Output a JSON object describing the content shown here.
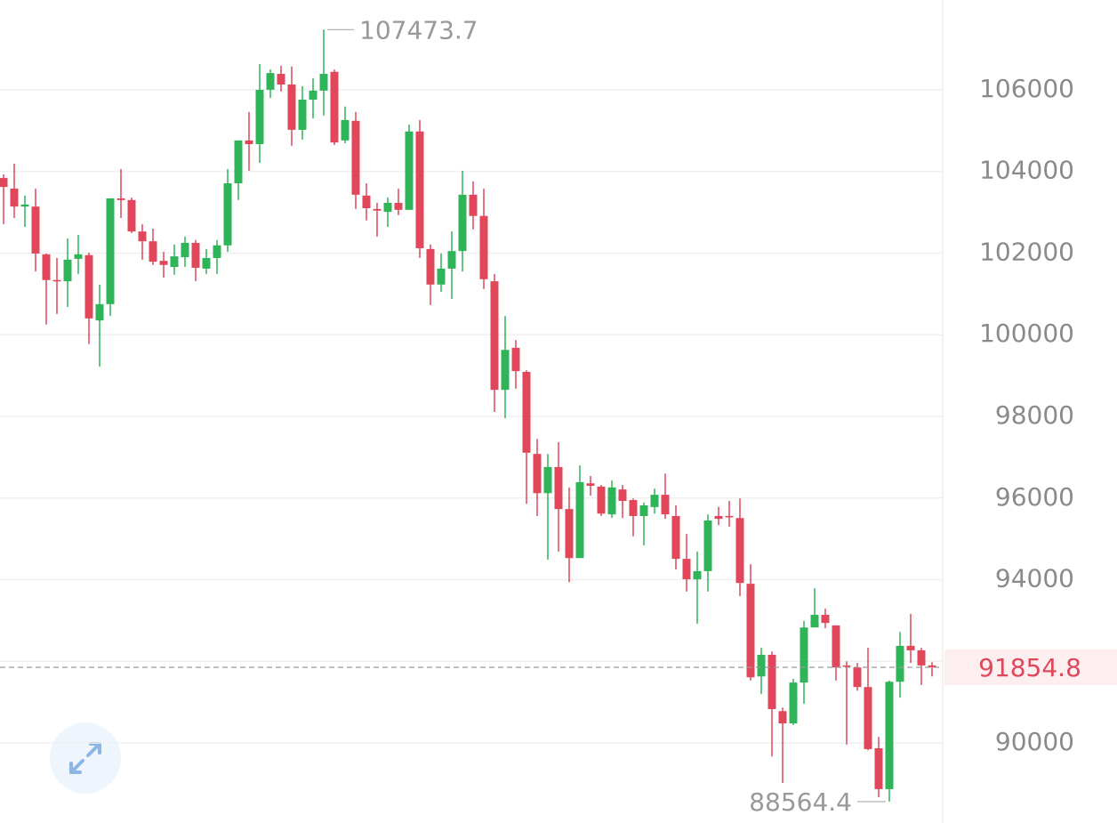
{
  "chart_data": {
    "type": "candlestick",
    "open": [
      103840,
      103580,
      103140,
      103140,
      101970,
      101340,
      101310,
      101860,
      101950,
      100350,
      100750,
      103340,
      103300,
      102530,
      102290,
      101810,
      101660,
      101900,
      102250,
      101620,
      101880,
      102190,
      103710,
      104760,
      104670,
      106000,
      106390,
      106130,
      105020,
      105760,
      105980,
      106440,
      104760,
      105240,
      103410,
      103080,
      103010,
      103230,
      103060,
      104980,
      102100,
      101230,
      101620,
      102050,
      103430,
      102910,
      101310,
      98650,
      99680,
      99090,
      97080,
      96120,
      96760,
      95730,
      94530,
      96360,
      96280,
      95600,
      96210,
      95950,
      95560,
      95780,
      96080,
      95560,
      94510,
      94010,
      94210,
      95560,
      95560,
      95510,
      93900,
      91630,
      92160,
      90780,
      90480,
      91480,
      92830,
      93140,
      92880,
      91900,
      91850,
      91370,
      89870,
      88870,
      91500,
      92380,
      92270,
      91900
    ],
    "high": [
      103930,
      104190,
      103410,
      103580,
      101990,
      101880,
      102360,
      102450,
      102010,
      101230,
      103340,
      104060,
      103360,
      102710,
      102600,
      102030,
      102210,
      102400,
      102320,
      102100,
      102320,
      104060,
      104760,
      105460,
      106630,
      106500,
      106590,
      106570,
      106090,
      106280,
      107473.7,
      106500,
      105590,
      105460,
      103710,
      103230,
      103360,
      103580,
      105150,
      105260,
      102210,
      101990,
      102530,
      104020,
      103760,
      103580,
      101490,
      100460,
      99870,
      99130,
      97450,
      97080,
      97370,
      96260,
      96800,
      96540,
      96320,
      96430,
      96320,
      95990,
      95890,
      96230,
      96600,
      95820,
      95120,
      94690,
      95600,
      95780,
      95930,
      95990,
      94380,
      92330,
      92240,
      90870,
      91570,
      92990,
      93790,
      93290,
      92880,
      92000,
      91960,
      92330,
      90150,
      91530,
      92720,
      93160,
      92330,
      91980
    ],
    "low": [
      102710,
      102860,
      102640,
      101550,
      100250,
      100510,
      100680,
      101490,
      99770,
      99220,
      100460,
      102860,
      102490,
      101840,
      101710,
      101400,
      101470,
      101660,
      101310,
      101490,
      101490,
      102030,
      103300,
      104020,
      104210,
      105800,
      105960,
      104630,
      104780,
      105300,
      105370,
      104650,
      104690,
      103080,
      102800,
      102400,
      102640,
      102930,
      103060,
      101880,
      100730,
      101050,
      100880,
      101550,
      102580,
      101120,
      98110,
      97960,
      98680,
      95860,
      95560,
      94490,
      94690,
      93940,
      94530,
      96060,
      95560,
      95510,
      95510,
      95060,
      94840,
      95620,
      95490,
      94250,
      93710,
      92920,
      93710,
      95340,
      95300,
      93600,
      91530,
      91200,
      89670,
      89020,
      90440,
      90960,
      92830,
      92810,
      91530,
      89960,
      91280,
      89820,
      88670,
      88564.4,
      91110,
      91960,
      91420,
      91630
    ],
    "close": [
      103620,
      103140,
      103190,
      101990,
      101340,
      101310,
      101840,
      101970,
      100400,
      100750,
      103340,
      103300,
      102530,
      102290,
      101790,
      101710,
      101920,
      102250,
      101640,
      101880,
      102190,
      103710,
      104760,
      104670,
      106000,
      106410,
      106130,
      105020,
      105760,
      105980,
      106390,
      104710,
      105260,
      103430,
      103100,
      103040,
      103230,
      103060,
      104980,
      102120,
      101230,
      101620,
      102050,
      103430,
      102910,
      101360,
      98650,
      99630,
      99110,
      97110,
      96120,
      96760,
      95730,
      94530,
      96390,
      96300,
      95620,
      96260,
      95930,
      95560,
      95820,
      96080,
      95600,
      94510,
      94010,
      94210,
      95450,
      95490,
      95540,
      93920,
      91610,
      92160,
      90830,
      90480,
      91480,
      92830,
      93140,
      92940,
      91850,
      91870,
      91370,
      89850,
      88870,
      91500,
      92380,
      92270,
      91900,
      91854.8
    ],
    "up_color": "#2fb45a",
    "down_color": "#e0475b",
    "ylim": [
      88040,
      108200
    ],
    "yticks": [
      90000,
      92000,
      94000,
      96000,
      98000,
      100000,
      102000,
      104000,
      106000
    ],
    "ytick_labels_shown": [
      true,
      false,
      true,
      true,
      true,
      true,
      true,
      true,
      true
    ],
    "grid": true
  }
}
